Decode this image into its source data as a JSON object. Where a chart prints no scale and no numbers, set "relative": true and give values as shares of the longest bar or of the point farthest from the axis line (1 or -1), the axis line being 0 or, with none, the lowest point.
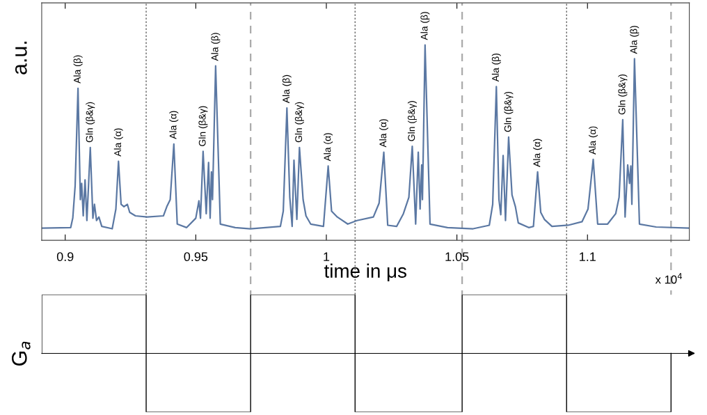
{
  "chart_data": [
    {
      "type": "line",
      "xlabel": "time in μs",
      "ylabel": "a.u.",
      "relative": true,
      "xlim": [
        0.891,
        1.139
      ],
      "xticks": [
        0.9,
        0.95,
        1,
        1.05,
        1.1
      ],
      "tick_labels": "x",
      "grid": false,
      "legend": false,
      "x": [
        0.8911,
        0.9021,
        0.9029,
        0.9038,
        0.9049,
        0.9058,
        0.9063,
        0.9069,
        0.9076,
        0.9083,
        0.9096,
        0.9106,
        0.9112,
        0.912,
        0.9129,
        0.914,
        0.918,
        0.9194,
        0.9204,
        0.9214,
        0.9225,
        0.9238,
        0.9247,
        0.9269,
        0.9314,
        0.9376,
        0.9389,
        0.9402,
        0.9416,
        0.9429,
        0.9465,
        0.95,
        0.9512,
        0.9518,
        0.9528,
        0.954,
        0.9549,
        0.9555,
        0.956,
        0.9564,
        0.9576,
        0.9594,
        0.9651,
        0.9709,
        0.9824,
        0.9835,
        0.9849,
        0.986,
        0.9869,
        0.9876,
        0.9887,
        0.9897,
        0.9911,
        0.9922,
        0.994,
        0.9989,
        1.0007,
        1.002,
        1.0042,
        1.0082,
        1.0117,
        1.018,
        1.0202,
        1.022,
        1.0235,
        1.0269,
        1.0295,
        1.0316,
        1.0329,
        1.0342,
        1.0352,
        1.0359,
        1.0365,
        1.0368,
        1.0378,
        1.0397,
        1.0464,
        1.0562,
        1.0624,
        1.0637,
        1.0651,
        1.0661,
        1.0668,
        1.0677,
        1.0686,
        1.0698,
        1.0711,
        1.0724,
        1.0735,
        1.0775,
        1.0793,
        1.0809,
        1.0821,
        1.0835,
        1.0864,
        1.0926,
        1.0979,
        1.1002,
        1.1022,
        1.1039,
        1.1077,
        1.1108,
        1.1121,
        1.1135,
        1.1144,
        1.1154,
        1.1161,
        1.1166,
        1.117,
        1.118,
        1.1199,
        1.1263,
        1.1388
      ],
      "series": [
        {
          "color": "#5b78a3",
          "values": [
            0.062,
            0.065,
            0.114,
            0.279,
            0.778,
            0.208,
            0.291,
            0.125,
            0.309,
            0.101,
            0.475,
            0.113,
            0.184,
            0.101,
            0.119,
            0.071,
            0.059,
            0.16,
            0.404,
            0.184,
            0.172,
            0.184,
            0.143,
            0.125,
            0.119,
            0.125,
            0.172,
            0.208,
            0.493,
            0.083,
            0.065,
            0.113,
            0.202,
            0.113,
            0.455,
            0.136,
            0.398,
            0.113,
            0.35,
            0.208,
            0.893,
            0.083,
            0.065,
            0.059,
            0.071,
            0.149,
            0.677,
            0.22,
            0.071,
            0.41,
            0.107,
            0.475,
            0.208,
            0.125,
            0.083,
            0.071,
            0.38,
            0.149,
            0.119,
            0.083,
            0.101,
            0.119,
            0.19,
            0.451,
            0.077,
            0.071,
            0.136,
            0.22,
            0.481,
            0.083,
            0.451,
            0.16,
            0.386,
            0.208,
            1.0,
            0.083,
            0.065,
            0.059,
            0.077,
            0.184,
            0.787,
            0.208,
            0.131,
            0.434,
            0.101,
            0.528,
            0.232,
            0.172,
            0.089,
            0.065,
            0.071,
            0.35,
            0.143,
            0.107,
            0.071,
            0.077,
            0.095,
            0.16,
            0.414,
            0.083,
            0.083,
            0.136,
            0.22,
            0.617,
            0.119,
            0.386,
            0.291,
            0.38,
            0.184,
            0.929,
            0.083,
            0.068,
            0.062
          ]
        }
      ],
      "ref_lines": [
        {
          "axis": "x",
          "value": 0.931,
          "color": "#555555",
          "line_style": "dotted"
        },
        {
          "axis": "x",
          "value": 0.971,
          "color": "#aaaaaa",
          "line_style": "dashed"
        },
        {
          "axis": "x",
          "value": 1.011,
          "color": "#555555",
          "line_style": "dotted"
        },
        {
          "axis": "x",
          "value": 1.052,
          "color": "#aaaaaa",
          "line_style": "dashed"
        },
        {
          "axis": "x",
          "value": 1.092,
          "color": "#555555",
          "line_style": "dotted"
        },
        {
          "axis": "x",
          "value": 1.132,
          "color": "#aaaaaa",
          "line_style": "dashed"
        }
      ],
      "annotations": [
        {
          "text": "Ala (β)",
          "x": 0.9049,
          "y": 0.778
        },
        {
          "text": "Gln (β&γ)",
          "x": 0.9096,
          "y": 0.475
        },
        {
          "text": "Ala (α)",
          "x": 0.9204,
          "y": 0.404
        },
        {
          "text": "Ala (α)",
          "x": 0.9416,
          "y": 0.493
        },
        {
          "text": "Gln (β&γ)",
          "x": 0.9528,
          "y": 0.455
        },
        {
          "text": "Ala (β)",
          "x": 0.9576,
          "y": 0.893
        },
        {
          "text": "Ala (β)",
          "x": 0.9849,
          "y": 0.677
        },
        {
          "text": "Gln (β&γ)",
          "x": 0.9897,
          "y": 0.475
        },
        {
          "text": "Ala (α)",
          "x": 1.0007,
          "y": 0.38
        },
        {
          "text": "Ala (α)",
          "x": 1.022,
          "y": 0.451
        },
        {
          "text": "Gln (β&γ)",
          "x": 1.0329,
          "y": 0.481
        },
        {
          "text": "Ala (β)",
          "x": 1.0378,
          "y": 1.0
        },
        {
          "text": "Ala (β)",
          "x": 1.0651,
          "y": 0.787
        },
        {
          "text": "Gln (β&γ)",
          "x": 1.0698,
          "y": 0.528
        },
        {
          "text": "Ala (α)",
          "x": 1.0809,
          "y": 0.35
        },
        {
          "text": "Ala (α)",
          "x": 1.1022,
          "y": 0.414
        },
        {
          "text": "Gln (β&γ)",
          "x": 1.1135,
          "y": 0.617
        },
        {
          "text": "Ala (β)",
          "x": 1.118,
          "y": 0.929
        },
        "x 10$^{4}$"
      ]
    },
    {
      "type": "step",
      "ylabel": "G$_{a}$",
      "relative": true,
      "xlim": [
        0.891,
        1.139
      ],
      "tick_labels": false,
      "grid": false,
      "legend": false,
      "x": [
        0.891,
        0.891,
        0.931,
        0.971,
        1.011,
        1.052,
        1.092,
        1.132
      ],
      "series": [
        {
          "color": "#000000",
          "values": [
            0,
            1,
            -1,
            1,
            -1,
            1,
            -1,
            0
          ]
        }
      ]
    }
  ]
}
